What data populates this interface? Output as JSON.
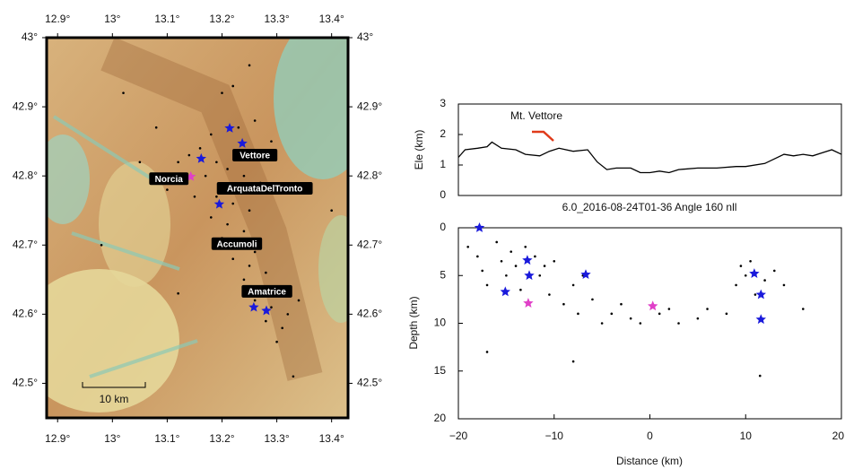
{
  "chart_data": [
    {
      "type": "map",
      "xlim": [
        12.88,
        13.43
      ],
      "ylim": [
        42.45,
        43.0
      ],
      "xticks": [
        {
          "value": 12.9,
          "label": "12.9°"
        },
        {
          "value": 13.0,
          "label": "13°"
        },
        {
          "value": 13.1,
          "label": "13.1°"
        },
        {
          "value": 13.2,
          "label": "13.2°"
        },
        {
          "value": 13.3,
          "label": "13.3°"
        },
        {
          "value": 13.4,
          "label": "13.4°"
        }
      ],
      "yticks": [
        {
          "value": 42.5,
          "label": "42.5°"
        },
        {
          "value": 42.6,
          "label": "42.6°"
        },
        {
          "value": 42.7,
          "label": "42.7°"
        },
        {
          "value": 42.8,
          "label": "42.8°"
        },
        {
          "value": 42.9,
          "label": "42.9°"
        },
        {
          "value": 43.0,
          "label": "43°"
        }
      ],
      "series": [
        {
          "marker": "dot",
          "color": "#000000",
          "x": [
            13.2,
            13.22,
            13.25,
            13.26,
            13.23,
            13.18,
            13.16,
            13.14,
            13.12,
            13.19,
            13.21,
            13.24,
            13.27,
            13.17,
            13.13,
            13.1,
            13.15,
            13.19,
            13.22,
            13.25,
            13.18,
            13.21,
            13.24,
            13.2,
            13.23,
            13.26,
            13.22,
            13.25,
            13.28,
            13.24,
            13.27,
            13.3,
            13.26,
            13.29,
            13.32,
            13.31,
            13.28,
            13.34,
            13.3,
            13.08,
            13.05,
            12.98,
            13.12,
            13.4,
            13.33,
            13.02,
            13.29
          ],
          "y": [
            42.92,
            42.93,
            42.96,
            42.88,
            42.87,
            42.86,
            42.84,
            42.83,
            42.82,
            42.82,
            42.81,
            42.8,
            42.79,
            42.8,
            42.79,
            42.78,
            42.77,
            42.77,
            42.76,
            42.75,
            42.74,
            42.73,
            42.72,
            42.71,
            42.7,
            42.69,
            42.68,
            42.67,
            42.66,
            42.65,
            42.64,
            42.63,
            42.62,
            42.61,
            42.6,
            42.58,
            42.59,
            42.62,
            42.56,
            42.87,
            42.82,
            42.7,
            42.63,
            42.75,
            42.51,
            42.92,
            42.85
          ]
        },
        {
          "marker": "star",
          "color": "#1a1adb",
          "x": [
            13.214,
            13.237,
            13.162,
            13.195,
            13.258,
            13.281
          ],
          "y": [
            42.869,
            42.847,
            42.825,
            42.759,
            42.61,
            42.605
          ]
        },
        {
          "marker": "star",
          "color": "#e040c8",
          "x": [
            13.143,
            13.221
          ],
          "y": [
            42.799,
            42.702
          ]
        }
      ],
      "towns": [
        {
          "name": "Vettore",
          "lon": 13.26,
          "lat": 42.83
        },
        {
          "name": "Norcia",
          "lon": 13.103,
          "lat": 42.796
        },
        {
          "name": "ArquataDelTronto",
          "lon": 13.278,
          "lat": 42.782
        },
        {
          "name": "Accumoli",
          "lon": 13.227,
          "lat": 42.702
        },
        {
          "name": "Amatrice",
          "lon": 13.282,
          "lat": 42.633
        }
      ],
      "scale_bar_label": "10 km"
    },
    {
      "type": "line",
      "ylabel": "Ele (km)",
      "annotation": "Mt. Vettore",
      "xlim": [
        -20,
        20
      ],
      "ylim": [
        0,
        3
      ],
      "yticks": [
        0,
        1,
        2,
        3
      ],
      "color": "#000000",
      "x": [
        -20,
        -19.3,
        -18,
        -17,
        -16.5,
        -15.5,
        -14,
        -13,
        -11.5,
        -10.5,
        -9.5,
        -8,
        -6.5,
        -5.5,
        -4.5,
        -3.5,
        -2,
        -1,
        0,
        1,
        2,
        3,
        5,
        7,
        9,
        10,
        12,
        14,
        15,
        16,
        17,
        18,
        19,
        20
      ],
      "y": [
        1.25,
        1.5,
        1.55,
        1.6,
        1.75,
        1.55,
        1.5,
        1.35,
        1.3,
        1.45,
        1.55,
        1.45,
        1.5,
        1.1,
        0.85,
        0.9,
        0.9,
        0.75,
        0.75,
        0.8,
        0.75,
        0.85,
        0.9,
        0.9,
        0.95,
        0.95,
        1.05,
        1.35,
        1.3,
        1.35,
        1.3,
        1.4,
        1.5,
        1.35
      ]
    },
    {
      "type": "scatter",
      "title": "6.0_2016-08-24T01-36 Angle 160 nll",
      "xlabel": "Distance (km)",
      "ylabel": "Depth (km)",
      "xlim": [
        -20,
        20
      ],
      "ylim": [
        0,
        20
      ],
      "y_inverted": true,
      "xticks": [
        {
          "value": -20,
          "label": "−20"
        },
        {
          "value": -10,
          "label": "−10"
        },
        0,
        10,
        20
      ],
      "yticks": [
        0,
        5,
        10,
        15,
        20
      ],
      "series": [
        {
          "marker": "dot",
          "color": "#000000",
          "x": [
            -19,
            -18,
            -17.5,
            -17,
            -16,
            -15.5,
            -15,
            -14.5,
            -14,
            -13.5,
            -13,
            -12,
            -11.5,
            -11,
            -10.5,
            -10,
            -9,
            -8,
            -7.5,
            -7,
            -6,
            -5,
            -4,
            -3,
            -2,
            -1,
            1,
            2,
            3,
            5,
            6,
            8,
            9,
            9.5,
            10,
            10.5,
            11,
            12,
            13,
            14,
            16,
            -17,
            -8,
            11.5
          ],
          "y": [
            2,
            3,
            4.5,
            6,
            1.5,
            3.5,
            5,
            2.5,
            4,
            6.5,
            2,
            3,
            5,
            4,
            7,
            3.5,
            8,
            6,
            9,
            5,
            7.5,
            10,
            9,
            8,
            9.5,
            10,
            9,
            8.5,
            10,
            9.5,
            8.5,
            9,
            6,
            4,
            5,
            3.5,
            7,
            5.5,
            4.5,
            6,
            8.5,
            13,
            14,
            15.5
          ]
        },
        {
          "marker": "star",
          "color": "#1a1adb",
          "x": [
            -17.8,
            -12.8,
            -12.6,
            -15.1,
            -6.7,
            10.9,
            11.6,
            11.6
          ],
          "y": [
            0,
            3.4,
            5.0,
            6.7,
            4.9,
            4.8,
            7.0,
            9.6
          ]
        },
        {
          "marker": "star",
          "color": "#e040c8",
          "x": [
            -12.7,
            0.3
          ],
          "y": [
            7.9,
            8.2
          ]
        }
      ]
    }
  ]
}
